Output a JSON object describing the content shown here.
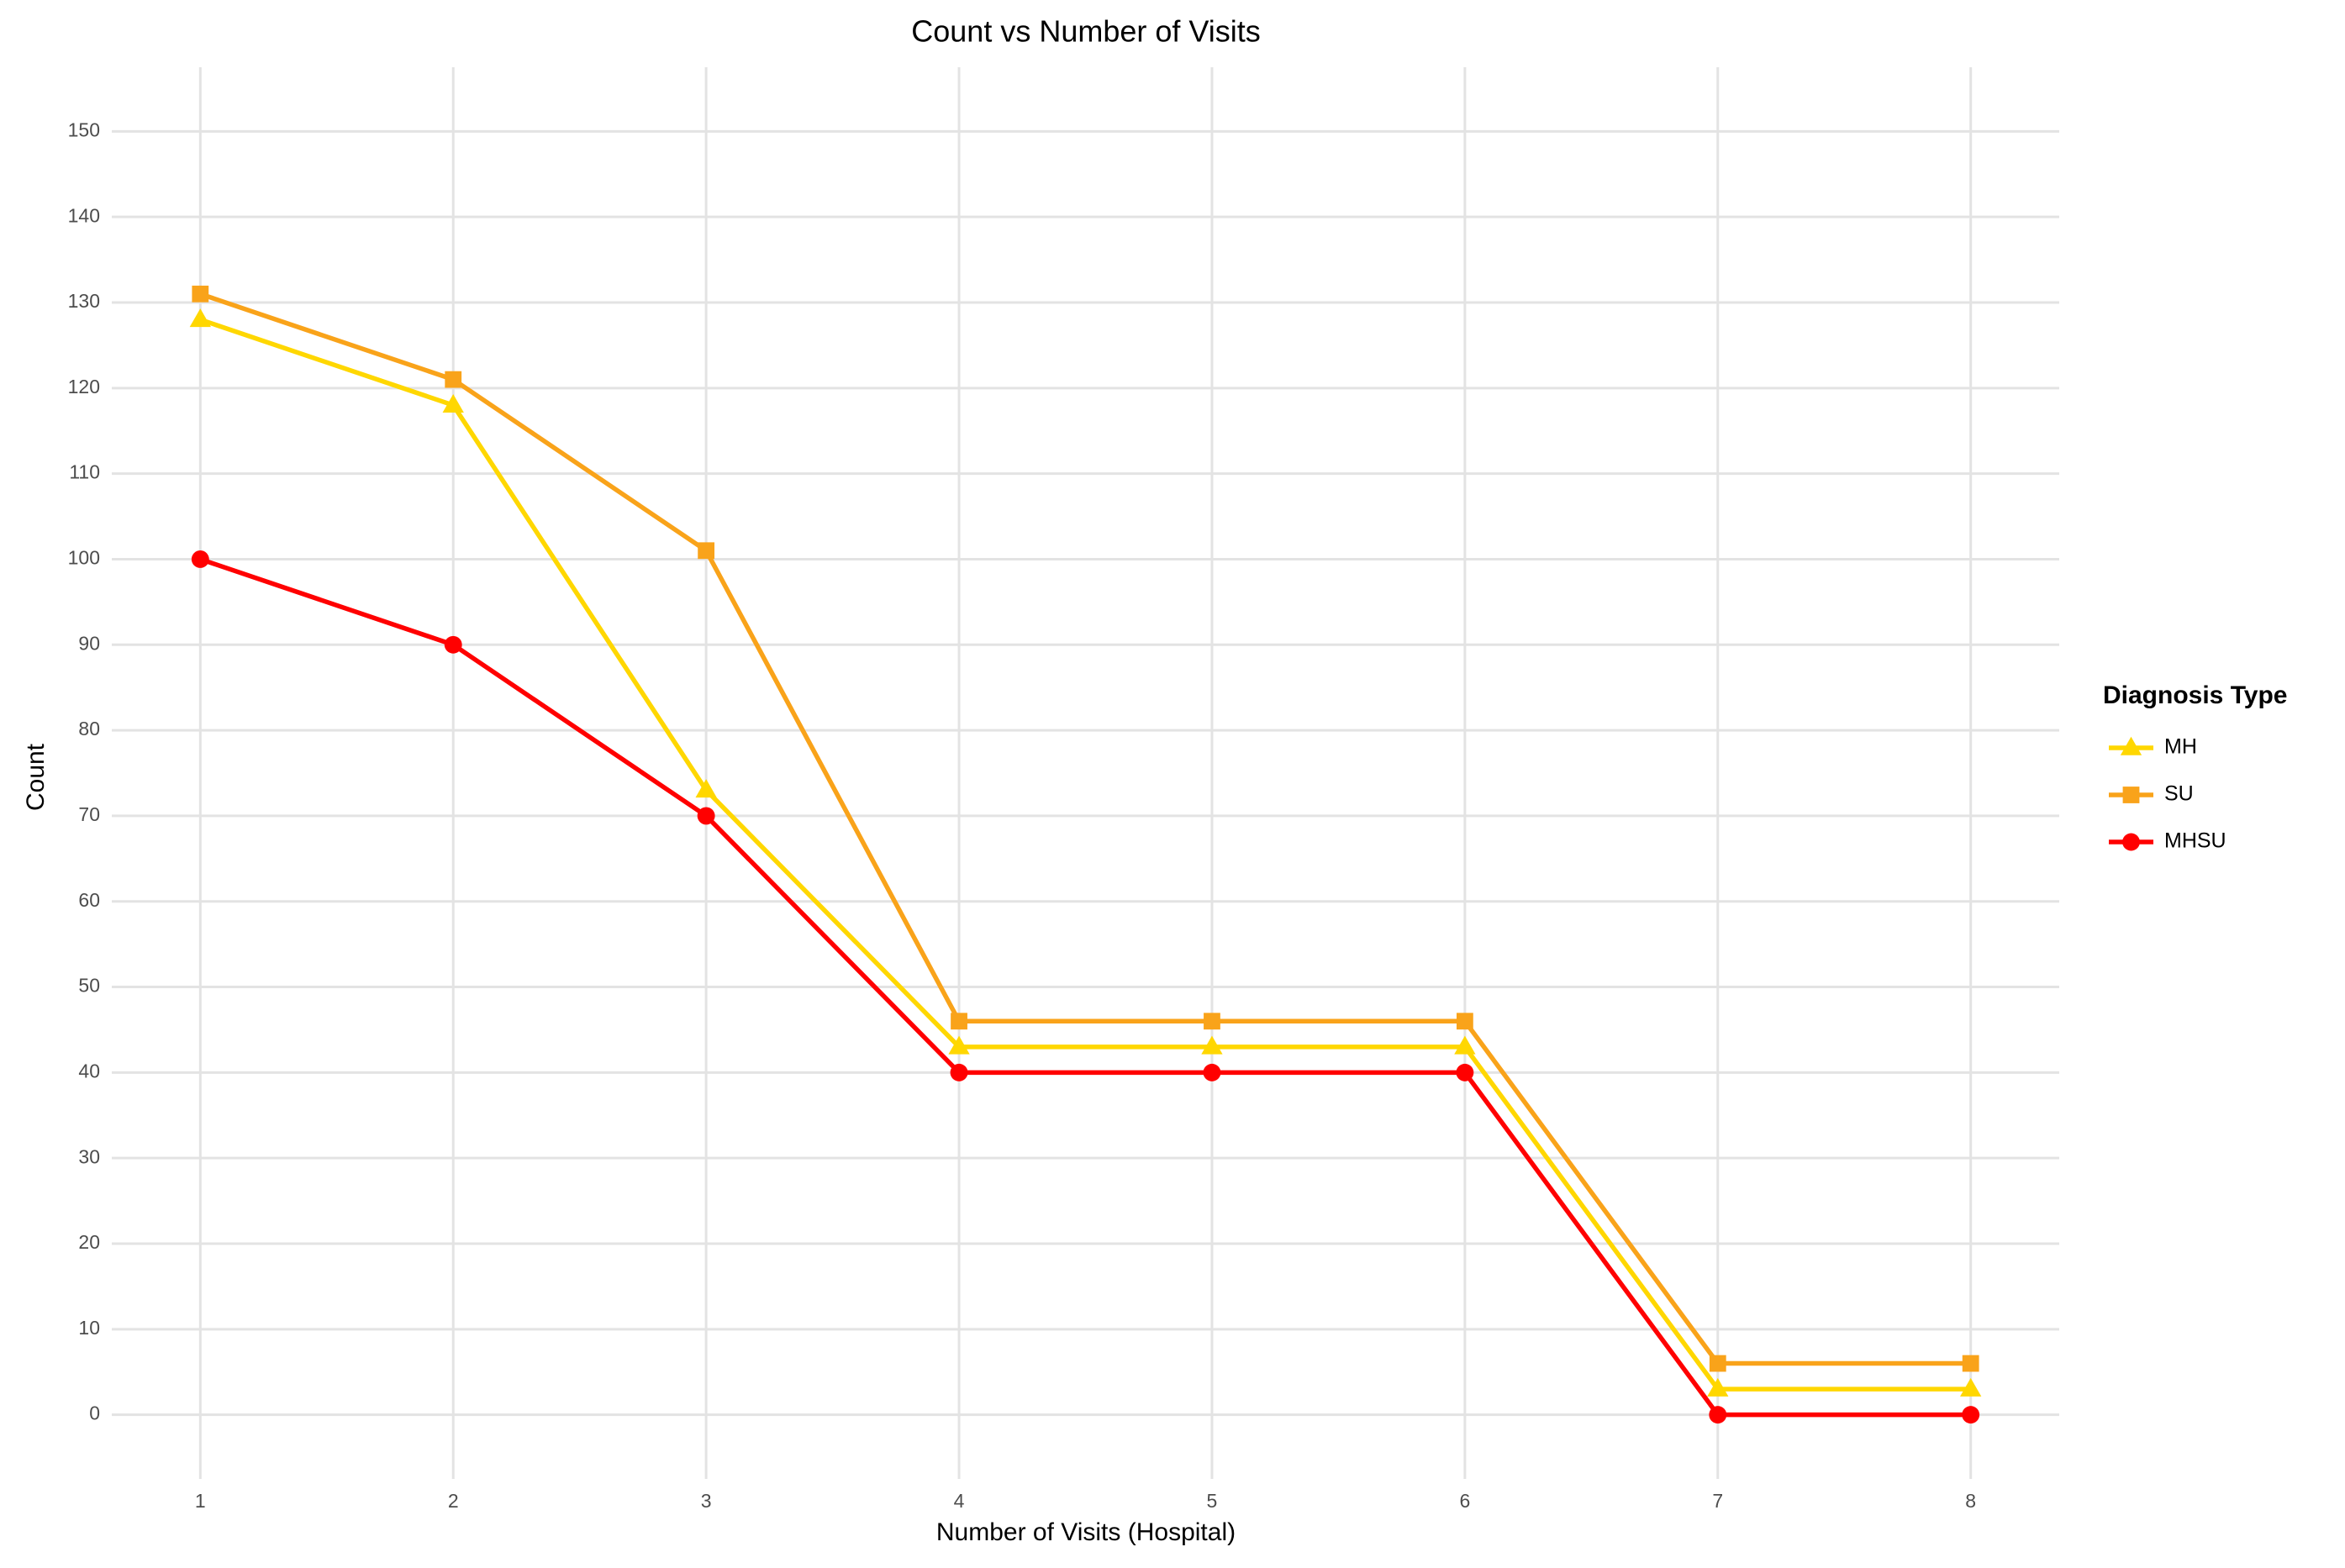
{
  "chart_data": {
    "type": "line",
    "title": "Count vs Number of Visits",
    "x_label": "Number of Visits (Hospital)",
    "y_label": "Count",
    "x": [
      1,
      2,
      3,
      4,
      5,
      6,
      7,
      8
    ],
    "series": [
      {
        "name": "MH",
        "color": "#FFD700",
        "shape": "triangle",
        "values": [
          128,
          118,
          73,
          43,
          43,
          43,
          3,
          3
        ]
      },
      {
        "name": "SU",
        "color": "#F9A31A",
        "shape": "square",
        "values": [
          131,
          121,
          101,
          46,
          46,
          46,
          6,
          6
        ]
      },
      {
        "name": "MHSU",
        "color": "#FF0000",
        "shape": "circle",
        "values": [
          100,
          90,
          70,
          40,
          40,
          40,
          0,
          0
        ]
      }
    ],
    "legend_title": "Diagnosis Type",
    "legend_position": "right",
    "xlim": [
      0.65,
      8.35
    ],
    "xticks": [
      1,
      2,
      3,
      4,
      5,
      6,
      7,
      8
    ],
    "ylim": [
      -7.5,
      157.5
    ],
    "yticks": [
      0,
      10,
      20,
      30,
      40,
      50,
      60,
      70,
      80,
      90,
      100,
      110,
      120,
      130,
      140,
      150
    ],
    "grid": true
  }
}
